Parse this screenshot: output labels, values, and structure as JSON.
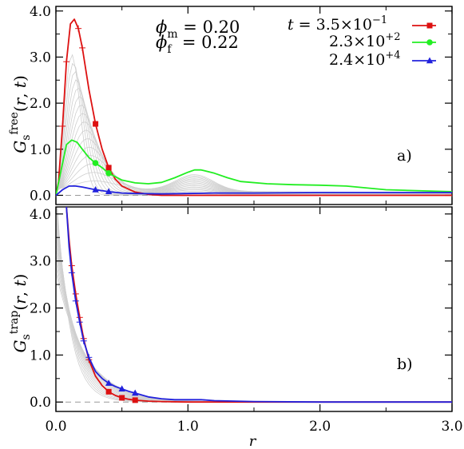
{
  "params": {
    "phi_m": "0.20",
    "phi_f": "0.22"
  },
  "legend": {
    "prefix": "t = ",
    "entries": [
      {
        "mantissa": "3.5",
        "exponent": "−1"
      },
      {
        "mantissa": "2.3",
        "exponent": "+2"
      },
      {
        "mantissa": "2.4",
        "exponent": "+4"
      }
    ]
  },
  "chart_data": [
    {
      "panel": "a)",
      "type": "line",
      "ylabel": "G_s^free(r,t)",
      "xlabel": "",
      "xlim": [
        0.0,
        3.0
      ],
      "ylim": [
        -0.2,
        4.1
      ],
      "xticks": [
        "0.0",
        "1.0",
        "2.0",
        "3.0"
      ],
      "yticks": [
        "0.0",
        "1.0",
        "2.0",
        "3.0",
        "4.0"
      ],
      "series": [
        {
          "name": "3.5×10^-1",
          "color": "#dd1111",
          "marker": "square",
          "x": [
            0.0,
            0.02,
            0.05,
            0.08,
            0.11,
            0.14,
            0.17,
            0.2,
            0.25,
            0.3,
            0.35,
            0.4,
            0.45,
            0.5,
            0.6,
            0.7,
            0.8,
            1.0,
            1.5,
            2.0,
            3.0
          ],
          "y": [
            0.0,
            0.3,
            1.5,
            2.9,
            3.72,
            3.82,
            3.62,
            3.2,
            2.3,
            1.55,
            1.0,
            0.6,
            0.35,
            0.2,
            0.07,
            0.02,
            0.0,
            0.0,
            0.0,
            0.0,
            0.0
          ]
        },
        {
          "name": "2.3×10^+2",
          "color": "#22ee22",
          "marker": "circle",
          "x": [
            0.0,
            0.04,
            0.08,
            0.12,
            0.16,
            0.2,
            0.25,
            0.3,
            0.35,
            0.4,
            0.5,
            0.6,
            0.7,
            0.8,
            0.9,
            1.0,
            1.05,
            1.1,
            1.2,
            1.3,
            1.4,
            1.6,
            1.8,
            2.0,
            2.2,
            2.5,
            3.0
          ],
          "y": [
            0.0,
            0.55,
            1.1,
            1.2,
            1.15,
            1.0,
            0.82,
            0.7,
            0.6,
            0.48,
            0.33,
            0.27,
            0.25,
            0.28,
            0.38,
            0.5,
            0.55,
            0.55,
            0.48,
            0.38,
            0.3,
            0.25,
            0.23,
            0.22,
            0.2,
            0.12,
            0.08
          ]
        },
        {
          "name": "2.4×10^+4",
          "color": "#2222dd",
          "marker": "triangle",
          "x": [
            0.0,
            0.05,
            0.1,
            0.15,
            0.2,
            0.3,
            0.4,
            0.5,
            0.6,
            0.8,
            1.0,
            1.2,
            1.5,
            2.0,
            2.5,
            3.0
          ],
          "y": [
            0.0,
            0.12,
            0.2,
            0.2,
            0.18,
            0.12,
            0.08,
            0.05,
            0.04,
            0.03,
            0.04,
            0.05,
            0.05,
            0.06,
            0.06,
            0.06
          ]
        }
      ]
    },
    {
      "panel": "b)",
      "type": "line",
      "ylabel": "G_s^trap(r,t)",
      "xlabel": "r",
      "xlim": [
        0.0,
        3.0
      ],
      "ylim": [
        -0.2,
        4.15
      ],
      "xticks": [
        "0.0",
        "1.0",
        "2.0",
        "3.0"
      ],
      "yticks": [
        "0.0",
        "1.0",
        "2.0",
        "3.0",
        "4.0"
      ],
      "series": [
        {
          "name": "3.5×10^-1",
          "color": "#dd1111",
          "marker": "square",
          "x": [
            0.08,
            0.1,
            0.12,
            0.15,
            0.18,
            0.21,
            0.25,
            0.3,
            0.35,
            0.4,
            0.45,
            0.5,
            0.55,
            0.6,
            0.7,
            0.8,
            1.0,
            1.5,
            2.0,
            3.0
          ],
          "y": [
            4.15,
            3.45,
            2.9,
            2.3,
            1.8,
            1.35,
            0.9,
            0.55,
            0.35,
            0.22,
            0.14,
            0.09,
            0.06,
            0.04,
            0.02,
            0.01,
            0.0,
            0.0,
            0.0,
            0.0
          ]
        },
        {
          "name": "2.4×10^+4",
          "color": "#2222dd",
          "marker": "triangle",
          "x": [
            0.08,
            0.1,
            0.12,
            0.15,
            0.18,
            0.21,
            0.25,
            0.3,
            0.35,
            0.4,
            0.45,
            0.5,
            0.55,
            0.6,
            0.7,
            0.8,
            0.9,
            1.0,
            1.1,
            1.2,
            1.5,
            2.0,
            3.0
          ],
          "y": [
            4.15,
            3.3,
            2.75,
            2.15,
            1.7,
            1.3,
            0.95,
            0.65,
            0.5,
            0.4,
            0.33,
            0.28,
            0.23,
            0.19,
            0.11,
            0.07,
            0.05,
            0.05,
            0.05,
            0.03,
            0.01,
            0.0,
            0.0
          ]
        }
      ]
    }
  ]
}
